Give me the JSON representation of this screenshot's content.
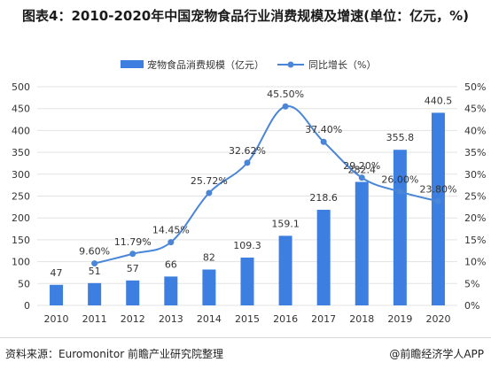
{
  "title": "图表4：2010-2020年中国宠物食品行业消费规模及增速(单位：亿元，%)",
  "source": "资料来源：Euromonitor 前瞻产业研究院整理",
  "brand": "@前瞻经济学人APP",
  "colors": {
    "bar": "#3d7fe0",
    "line": "#4a86d8",
    "grid": "#e3e3e3",
    "text": "#333333"
  },
  "chart_data": {
    "type": "bar",
    "categories": [
      "2010",
      "2011",
      "2012",
      "2013",
      "2014",
      "2015",
      "2016",
      "2017",
      "2018",
      "2019",
      "2020"
    ],
    "series": [
      {
        "name": "宠物食品消费规模（亿元）",
        "type": "bar",
        "axis": "left",
        "values": [
          47,
          51,
          57,
          66,
          82,
          109.3,
          159.1,
          218.6,
          282.4,
          355.8,
          440.5
        ],
        "labels": [
          "47",
          "51",
          "57",
          "66",
          "82",
          "109.3",
          "159.1",
          "218.6",
          "282.4",
          "355.8",
          "440.5"
        ]
      },
      {
        "name": "同比增长（%）",
        "type": "line",
        "axis": "right",
        "values": [
          null,
          9.6,
          11.79,
          14.45,
          25.72,
          32.62,
          45.5,
          37.4,
          29.2,
          26.0,
          23.8
        ],
        "labels": [
          "",
          "9.60%",
          "11.79%",
          "14.45%",
          "25.72%",
          "32.62%",
          "45.50%",
          "37.40%",
          "29.20%",
          "26.00%",
          "23.80%"
        ]
      }
    ],
    "y_left": {
      "min": 0,
      "max": 500,
      "step": 50,
      "ticks": [
        "0",
        "50",
        "100",
        "150",
        "200",
        "250",
        "300",
        "350",
        "400",
        "450",
        "500"
      ]
    },
    "y_right": {
      "min": 0,
      "max": 50,
      "step": 5,
      "ticks": [
        "0%",
        "5%",
        "10%",
        "15%",
        "20%",
        "25%",
        "30%",
        "35%",
        "40%",
        "45%",
        "50%"
      ]
    },
    "grid": true,
    "legend": "top"
  }
}
